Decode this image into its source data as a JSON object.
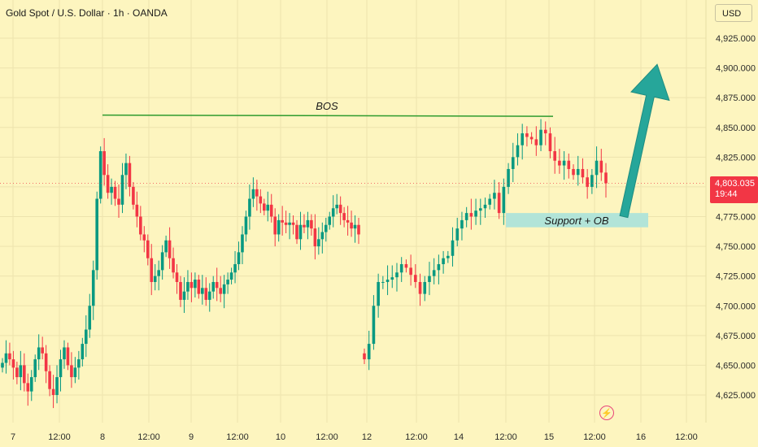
{
  "header": {
    "title": "Gold Spot / U.S. Dollar · 1h · OANDA"
  },
  "currency_button": "USD",
  "last_price": {
    "value": "4,803.035",
    "countdown": "19:44"
  },
  "icons": {
    "bolt": "lightning-icon"
  },
  "colors": {
    "bull": "#089981",
    "bear": "#f23645",
    "background": "#fdf5bf",
    "bos_line": "#2e9b2e",
    "arrow": "#26a69a",
    "zone": "#b2e4d8"
  },
  "chart_data": {
    "type": "candlestick",
    "symbol": "Gold Spot / U.S. Dollar",
    "interval": "1h",
    "source": "OANDA",
    "yaxis": {
      "ticks": [
        4625,
        4650,
        4675,
        4700,
        4725,
        4750,
        4775,
        4800,
        4825,
        4850,
        4875,
        4900,
        4925
      ],
      "tick_labels": [
        "4,625.000",
        "4,650.000",
        "4,675.000",
        "4,700.000",
        "4,725.000",
        "4,750.000",
        "4,775.000",
        "4,800.000",
        "4,825.000",
        "4,850.000",
        "4,875.000",
        "4,900.000",
        "4,925.000"
      ]
    },
    "xaxis": {
      "labels": [
        "7",
        "12:00",
        "8",
        "12:00",
        "9",
        "12:00",
        "10",
        "12:00",
        "12",
        "12:00",
        "14",
        "12:00",
        "15",
        "12:00",
        "16",
        "12:00"
      ]
    },
    "segments": [
      {
        "day": "7-9",
        "closes": [
          4652,
          4660,
          4655,
          4648,
          4640,
          4650,
          4635,
          4628,
          4640,
          4655,
          4665,
          4660,
          4645,
          4630,
          4625,
          4640,
          4655,
          4665,
          4650,
          4640,
          4648,
          4655,
          4668,
          4680,
          4700,
          4730,
          4790,
          4830,
          4810,
          4795,
          4800,
          4790,
          4785,
          4810,
          4820,
          4800,
          4785,
          4775,
          4760,
          4755,
          4740,
          4720,
          4725,
          4730,
          4745,
          4755,
          4740,
          4728,
          4720,
          4705,
          4712,
          4720,
          4715,
          4722,
          4710,
          4715,
          4705,
          4712,
          4720,
          4715,
          4710,
          4718,
          4722,
          4728,
          4735,
          4745,
          4760,
          4775,
          4790,
          4798,
          4792,
          4786,
          4780,
          4785,
          4775,
          4760,
          4772,
          4770,
          4768,
          4770,
          4768,
          4756,
          4768,
          4766,
          4772,
          4765,
          4750,
          4756,
          4762,
          4768,
          4775,
          4782,
          4785,
          4778,
          4772,
          4770,
          4765,
          4768,
          4760
        ]
      },
      {
        "day": "12-15",
        "closes": [
          4655,
          4668,
          4700,
          4720,
          4720,
          4722,
          4724,
          4728,
          4735,
          4732,
          4726,
          4720,
          4710,
          4720,
          4725,
          4730,
          4735,
          4740,
          4742,
          4755,
          4765,
          4772,
          4778,
          4775,
          4780,
          4782,
          4785,
          4790,
          4795,
          4778,
          4800,
          4815,
          4825,
          4835,
          4845,
          4842,
          4840,
          4835,
          4848,
          4845,
          4830,
          4822,
          4818,
          4822,
          4815,
          4810,
          4815,
          4808,
          4800,
          4810,
          4822,
          4812,
          4803
        ]
      }
    ],
    "annotations": [
      {
        "type": "horizontal_line",
        "label": "BOS",
        "value": 4860
      },
      {
        "type": "zone",
        "label": "Support + OB",
        "from": 4766,
        "to": 4778
      },
      {
        "type": "arrow",
        "direction": "up",
        "from_value": 4775,
        "to_value": 4903
      }
    ]
  }
}
